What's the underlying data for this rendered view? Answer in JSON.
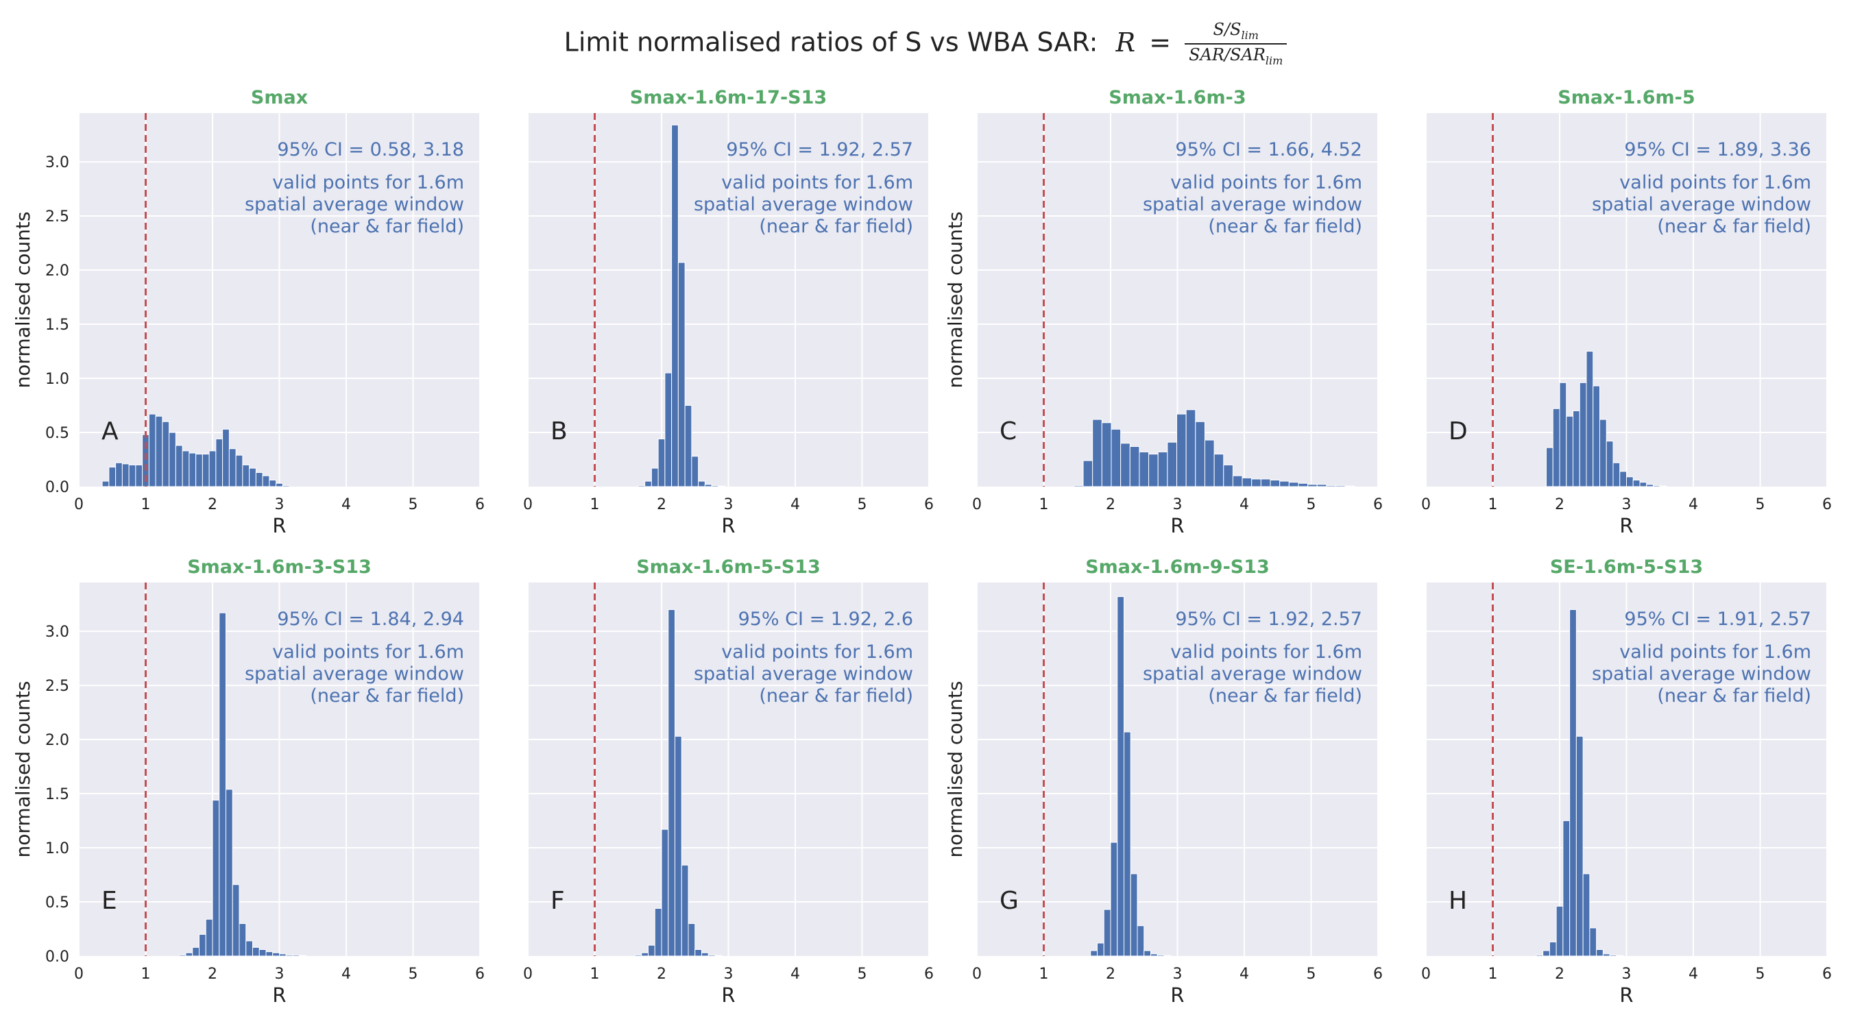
{
  "figure": {
    "title_text": "Limit normalised ratios of S vs WBA SAR:",
    "title_var": "R",
    "title_eq": "=",
    "title_num": "S/S",
    "title_num_sub": "lim",
    "title_den": "SAR/SAR",
    "title_den_sub": "lim"
  },
  "colors": {
    "bar": "#4c72b0",
    "panel_bg": "#eaeaf2",
    "grid": "#ffffff",
    "title_green": "#55a868",
    "annotation": "#4c72b0",
    "vline": "#c44e52"
  },
  "chart_data": [
    {
      "type": "bar",
      "panel_letter": "A",
      "title": "Smax",
      "ci_text": "95% CI = 0.58, 3.18",
      "note_lines": [
        "valid points for 1.6m",
        "spatial average window",
        "(near & far field)"
      ],
      "xlabel": "R",
      "ylabel": "normalised counts",
      "xlim": [
        0,
        6
      ],
      "ylim": [
        0,
        3.45
      ],
      "xticks": [
        0,
        1,
        2,
        3,
        4,
        5,
        6
      ],
      "yticks": [
        0.0,
        0.5,
        1.0,
        1.5,
        2.0,
        2.5,
        3.0
      ],
      "vline_x": 1,
      "bin_width": 0.1,
      "bin_start": 0.35,
      "values": [
        0.05,
        0.18,
        0.22,
        0.21,
        0.2,
        0.2,
        0.48,
        0.67,
        0.65,
        0.6,
        0.5,
        0.38,
        0.33,
        0.31,
        0.3,
        0.3,
        0.33,
        0.44,
        0.53,
        0.35,
        0.29,
        0.2,
        0.17,
        0.13,
        0.1,
        0.06,
        0.03,
        0.01
      ]
    },
    {
      "type": "bar",
      "panel_letter": "B",
      "title": "Smax-1.6m-17-S13",
      "ci_text": "95% CI = 1.92, 2.57",
      "note_lines": [
        "valid points for 1.6m",
        "spatial average window",
        "(near & far field)"
      ],
      "xlabel": "R",
      "ylabel": "",
      "xlim": [
        0,
        6
      ],
      "ylim": [
        0,
        3.45
      ],
      "xticks": [
        0,
        1,
        2,
        3,
        4,
        5,
        6
      ],
      "yticks": [],
      "vline_x": 1,
      "bin_width": 0.1,
      "bin_start": 1.65,
      "values": [
        0.01,
        0.05,
        0.17,
        0.44,
        1.05,
        3.34,
        2.07,
        0.75,
        0.28,
        0.05,
        0.02,
        0.01,
        0.005
      ]
    },
    {
      "type": "bar",
      "panel_letter": "C",
      "title": "Smax-1.6m-3",
      "ci_text": "95% CI = 1.66, 4.52",
      "note_lines": [
        "valid points for 1.6m",
        "spatial average window",
        "(near & far field)"
      ],
      "xlabel": "R",
      "ylabel": "normalised counts",
      "xlim": [
        0,
        6
      ],
      "ylim": [
        0,
        3.45
      ],
      "xticks": [
        0,
        1,
        2,
        3,
        4,
        5,
        6
      ],
      "yticks": [],
      "vline_x": 1,
      "bin_width": 0.14,
      "bin_start": 1.45,
      "values": [
        0.01,
        0.24,
        0.62,
        0.59,
        0.53,
        0.4,
        0.37,
        0.32,
        0.3,
        0.32,
        0.41,
        0.67,
        0.71,
        0.6,
        0.43,
        0.3,
        0.2,
        0.1,
        0.08,
        0.07,
        0.07,
        0.06,
        0.05,
        0.04,
        0.03,
        0.02,
        0.02,
        0.01,
        0.01,
        0.005
      ]
    },
    {
      "type": "bar",
      "panel_letter": "D",
      "title": "Smax-1.6m-5",
      "ci_text": "95% CI = 1.89, 3.36",
      "note_lines": [
        "valid points for 1.6m",
        "spatial average window",
        "(near & far field)"
      ],
      "xlabel": "R",
      "ylabel": "",
      "xlim": [
        0,
        6
      ],
      "ylim": [
        0,
        3.45
      ],
      "xticks": [
        0,
        1,
        2,
        3,
        4,
        5,
        6
      ],
      "yticks": [],
      "vline_x": 1,
      "bin_width": 0.1,
      "bin_start": 1.8,
      "values": [
        0.36,
        0.72,
        0.96,
        0.65,
        0.7,
        0.96,
        1.25,
        0.93,
        0.62,
        0.42,
        0.22,
        0.14,
        0.09,
        0.06,
        0.04,
        0.02,
        0.01,
        0.005
      ]
    },
    {
      "type": "bar",
      "panel_letter": "E",
      "title": "Smax-1.6m-3-S13",
      "ci_text": "95% CI = 1.84, 2.94",
      "note_lines": [
        "valid points for 1.6m",
        "spatial average window",
        "(near & far field)"
      ],
      "xlabel": "R",
      "ylabel": "normalised counts",
      "xlim": [
        0,
        6
      ],
      "ylim": [
        0,
        3.45
      ],
      "xticks": [
        0,
        1,
        2,
        3,
        4,
        5,
        6
      ],
      "yticks": [
        0.0,
        0.5,
        1.0,
        1.5,
        2.0,
        2.5,
        3.0
      ],
      "vline_x": 1,
      "bin_width": 0.1,
      "bin_start": 1.5,
      "values": [
        0.01,
        0.03,
        0.08,
        0.2,
        0.34,
        1.44,
        3.17,
        1.54,
        0.66,
        0.3,
        0.14,
        0.08,
        0.06,
        0.04,
        0.03,
        0.02,
        0.01,
        0.01,
        0.005
      ]
    },
    {
      "type": "bar",
      "panel_letter": "F",
      "title": "Smax-1.6m-5-S13",
      "ci_text": "95% CI = 1.92, 2.6",
      "note_lines": [
        "valid points for 1.6m",
        "spatial average window",
        "(near & far field)"
      ],
      "xlabel": "R",
      "ylabel": "",
      "xlim": [
        0,
        6
      ],
      "ylim": [
        0,
        3.45
      ],
      "xticks": [
        0,
        1,
        2,
        3,
        4,
        5,
        6
      ],
      "yticks": [],
      "vline_x": 1,
      "bin_width": 0.1,
      "bin_start": 1.6,
      "values": [
        0.01,
        0.03,
        0.1,
        0.44,
        1.17,
        3.2,
        2.03,
        0.84,
        0.3,
        0.06,
        0.03,
        0.01,
        0.005
      ]
    },
    {
      "type": "bar",
      "panel_letter": "G",
      "title": "Smax-1.6m-9-S13",
      "ci_text": "95% CI = 1.92, 2.57",
      "note_lines": [
        "valid points for 1.6m",
        "spatial average window",
        "(near & far field)"
      ],
      "xlabel": "R",
      "ylabel": "normalised counts",
      "xlim": [
        0,
        6
      ],
      "ylim": [
        0,
        3.45
      ],
      "xticks": [
        0,
        1,
        2,
        3,
        4,
        5,
        6
      ],
      "yticks": [],
      "vline_x": 1,
      "bin_width": 0.1,
      "bin_start": 1.7,
      "values": [
        0.05,
        0.12,
        0.43,
        1.05,
        3.32,
        2.07,
        0.76,
        0.28,
        0.05,
        0.02,
        0.01,
        0.005
      ]
    },
    {
      "type": "bar",
      "panel_letter": "H",
      "title": "SE-1.6m-5-S13",
      "ci_text": "95% CI = 1.91, 2.57",
      "note_lines": [
        "valid points for 1.6m",
        "spatial average window",
        "(near & far field)"
      ],
      "xlabel": "R",
      "ylabel": "",
      "xlim": [
        0,
        6
      ],
      "ylim": [
        0,
        3.45
      ],
      "xticks": [
        0,
        1,
        2,
        3,
        4,
        5,
        6
      ],
      "yticks": [],
      "vline_x": 1,
      "bin_width": 0.1,
      "bin_start": 1.65,
      "values": [
        0.01,
        0.05,
        0.13,
        0.46,
        1.25,
        3.2,
        2.03,
        0.76,
        0.26,
        0.06,
        0.02,
        0.01,
        0.005
      ]
    }
  ]
}
